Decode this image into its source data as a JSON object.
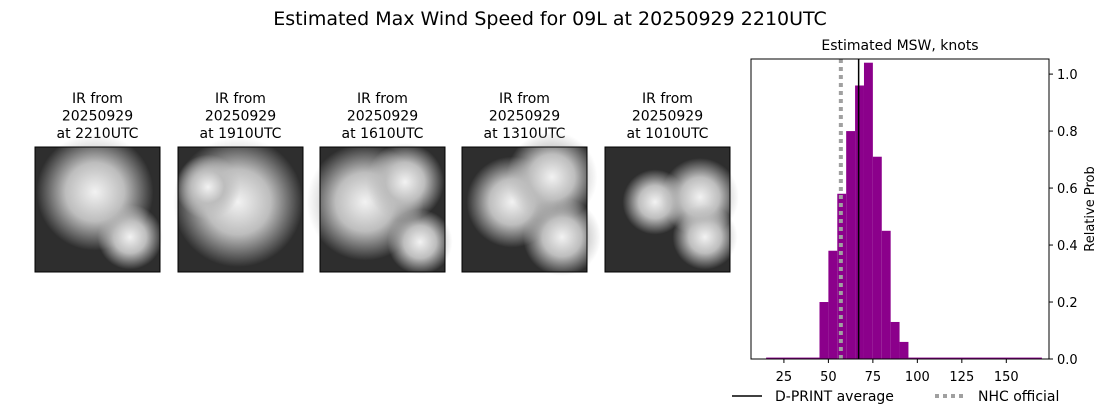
{
  "title": "Estimated Max Wind Speed for 09L at 20250929 2210UTC",
  "panels": [
    {
      "label": [
        "IR from",
        "20250929",
        "at 2210UTC"
      ]
    },
    {
      "label": [
        "IR from",
        "20250929",
        "at 1910UTC"
      ]
    },
    {
      "label": [
        "IR from",
        "20250929",
        "at 1610UTC"
      ]
    },
    {
      "label": [
        "IR from",
        "20250929",
        "at 1310UTC"
      ]
    },
    {
      "label": [
        "IR from",
        "20250929",
        "at 1010UTC"
      ]
    }
  ],
  "chart_data": {
    "type": "histogram",
    "title": "Estimated MSW, knots",
    "y_label": "Relative Prob",
    "bins": [
      15,
      45,
      50,
      55,
      60,
      65,
      70,
      75,
      80,
      85,
      90,
      95,
      170
    ],
    "values": [
      0.005,
      0.2,
      0.38,
      0.58,
      0.8,
      0.96,
      1.04,
      0.71,
      0.45,
      0.13,
      0.06,
      0.005
    ],
    "color": "#8b008b",
    "xlim": [
      6.5,
      174
    ],
    "ylim": [
      0,
      1.053
    ],
    "xticks": [
      25,
      50,
      75,
      100,
      125,
      150
    ],
    "yticks": [
      {
        "value": 0,
        "label": "0.0"
      },
      {
        "value": 0.2,
        "label": "0.2"
      },
      {
        "value": 0.4,
        "label": "0.4"
      },
      {
        "value": 0.6,
        "label": "0.6"
      },
      {
        "value": 0.8,
        "label": "0.8"
      },
      {
        "value": 1,
        "label": "1.0"
      }
    ],
    "lines": [
      {
        "name": "D-PRINT average",
        "x": 67,
        "color": "#000000",
        "style": "solid"
      },
      {
        "name": "NHC official",
        "x": 57,
        "color": "#a0a0a0",
        "style": "dotted"
      }
    ]
  }
}
